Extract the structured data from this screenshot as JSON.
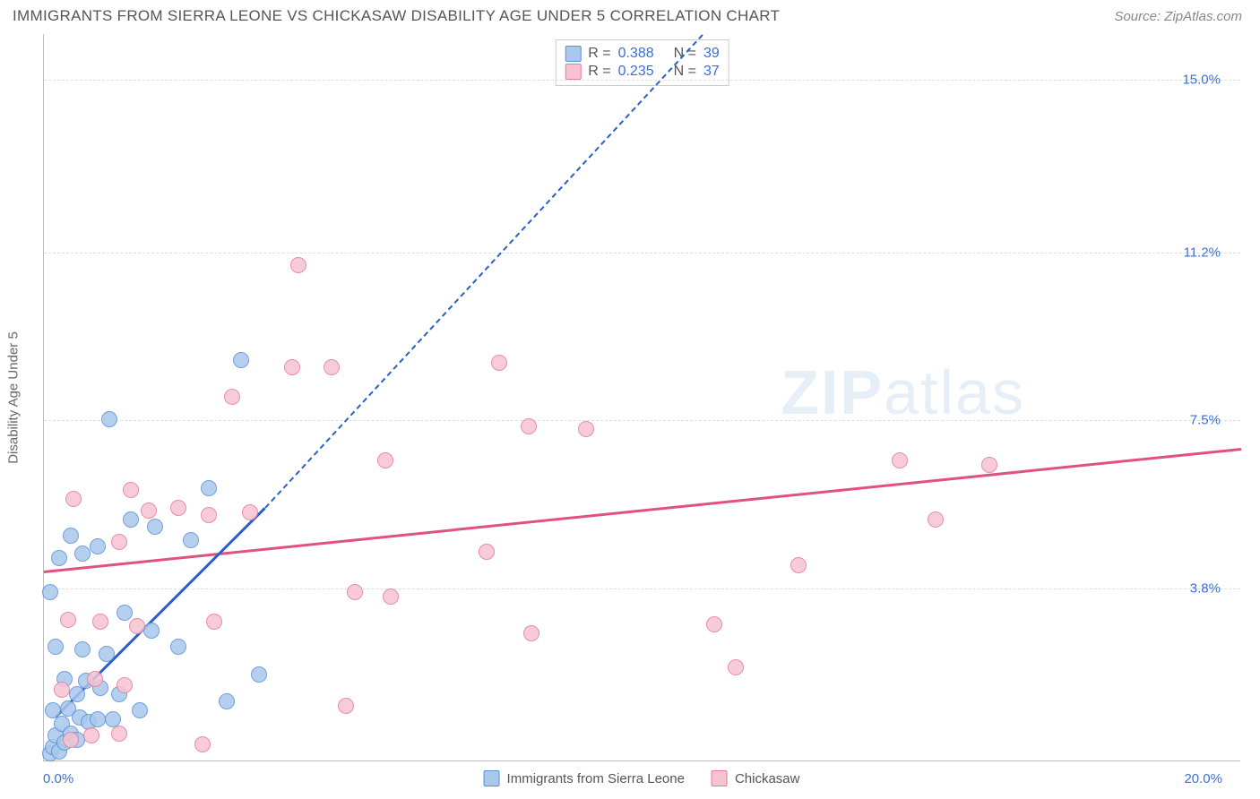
{
  "title": "IMMIGRANTS FROM SIERRA LEONE VS CHICKASAW DISABILITY AGE UNDER 5 CORRELATION CHART",
  "source": "Source: ZipAtlas.com",
  "watermark_a": "ZIP",
  "watermark_b": "atlas",
  "chart": {
    "type": "scatter",
    "xlim": [
      0,
      20
    ],
    "ylim": [
      0,
      16
    ],
    "y_ticks": [
      3.8,
      7.5,
      11.2,
      15.0
    ],
    "x_min_label": "0.0%",
    "x_max_label": "20.0%",
    "y_axis_title": "Disability Age Under 5",
    "grid_color": "#dddddd",
    "axis_color": "#bbbbbb",
    "tick_color": "#3a6fd8",
    "background_color": "#ffffff",
    "series": [
      {
        "name": "Immigrants from Sierra Leone",
        "fill_color": "#a8c8ec",
        "stroke_color": "#5a8fd6",
        "line_color": "#2a5fc8",
        "r_value": "0.388",
        "n_value": "39",
        "trend": {
          "x1": 0.2,
          "y1": 1.0,
          "x2": 3.7,
          "y2": 5.6,
          "x2_ext": 11.0,
          "y2_ext": 16.0
        },
        "points": [
          [
            0.1,
            0.15
          ],
          [
            0.15,
            0.3
          ],
          [
            0.25,
            0.2
          ],
          [
            0.2,
            0.55
          ],
          [
            0.35,
            0.4
          ],
          [
            0.3,
            0.8
          ],
          [
            0.45,
            0.6
          ],
          [
            0.55,
            0.45
          ],
          [
            0.15,
            1.1
          ],
          [
            0.4,
            1.15
          ],
          [
            0.6,
            0.95
          ],
          [
            0.75,
            0.85
          ],
          [
            0.9,
            0.9
          ],
          [
            1.15,
            0.9
          ],
          [
            0.55,
            1.45
          ],
          [
            0.35,
            1.8
          ],
          [
            0.7,
            1.75
          ],
          [
            0.95,
            1.6
          ],
          [
            1.25,
            1.45
          ],
          [
            0.2,
            2.5
          ],
          [
            0.65,
            2.45
          ],
          [
            1.05,
            2.35
          ],
          [
            0.1,
            3.7
          ],
          [
            0.25,
            4.45
          ],
          [
            0.65,
            4.55
          ],
          [
            0.9,
            4.7
          ],
          [
            0.45,
            4.95
          ],
          [
            1.45,
            5.3
          ],
          [
            1.85,
            5.15
          ],
          [
            2.75,
            6.0
          ],
          [
            1.35,
            3.25
          ],
          [
            1.8,
            2.85
          ],
          [
            2.25,
            2.5
          ],
          [
            3.05,
            1.3
          ],
          [
            1.6,
            1.1
          ],
          [
            2.45,
            4.85
          ],
          [
            1.1,
            7.5
          ],
          [
            3.3,
            8.8
          ],
          [
            3.6,
            1.9
          ]
        ]
      },
      {
        "name": "Chickasaw",
        "fill_color": "#f6c3d1",
        "stroke_color": "#e57a9a",
        "line_color": "#e1517e",
        "r_value": "0.235",
        "n_value": "37",
        "trend": {
          "x1": 0.0,
          "y1": 4.2,
          "x2": 20.0,
          "y2": 6.9
        },
        "points": [
          [
            0.45,
            0.45
          ],
          [
            0.8,
            0.55
          ],
          [
            1.25,
            0.6
          ],
          [
            0.3,
            1.55
          ],
          [
            0.85,
            1.8
          ],
          [
            1.35,
            1.65
          ],
          [
            0.4,
            3.1
          ],
          [
            0.95,
            3.05
          ],
          [
            1.55,
            2.95
          ],
          [
            2.65,
            0.35
          ],
          [
            2.85,
            3.05
          ],
          [
            1.25,
            4.8
          ],
          [
            1.75,
            5.5
          ],
          [
            2.25,
            5.55
          ],
          [
            2.75,
            5.4
          ],
          [
            3.45,
            5.45
          ],
          [
            1.45,
            5.95
          ],
          [
            0.5,
            5.75
          ],
          [
            3.15,
            8.0
          ],
          [
            4.25,
            10.9
          ],
          [
            4.15,
            8.65
          ],
          [
            4.8,
            8.65
          ],
          [
            5.2,
            3.7
          ],
          [
            5.8,
            3.6
          ],
          [
            5.7,
            6.6
          ],
          [
            7.6,
            8.75
          ],
          [
            7.4,
            4.6
          ],
          [
            8.15,
            2.8
          ],
          [
            8.1,
            7.35
          ],
          [
            9.05,
            7.3
          ],
          [
            11.2,
            3.0
          ],
          [
            11.55,
            2.05
          ],
          [
            12.6,
            4.3
          ],
          [
            14.9,
            5.3
          ],
          [
            14.3,
            6.6
          ],
          [
            15.8,
            6.5
          ],
          [
            5.05,
            1.2
          ]
        ]
      }
    ]
  }
}
